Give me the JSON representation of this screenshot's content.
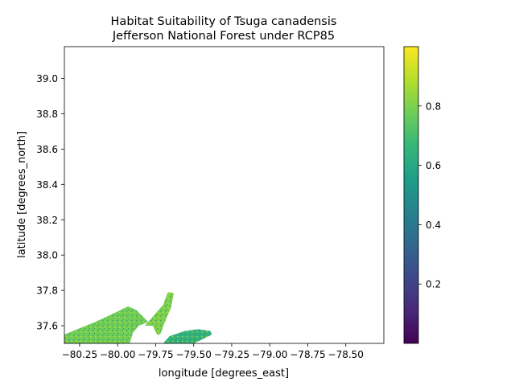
{
  "chart_data": {
    "type": "heatmap",
    "title_line1": "Habitat Suitability of Tsuga canadensis",
    "title_line2": "Jefferson National Forest under RCP85",
    "xlabel": "longitude [degrees_east]",
    "ylabel": "latitude [degrees_north]",
    "xlim": [
      -80.35,
      -78.25
    ],
    "ylim": [
      37.5,
      39.18
    ],
    "x_ticks": [
      -80.25,
      -80.0,
      -79.75,
      -79.5,
      -79.25,
      -79.0,
      -78.75,
      -78.5
    ],
    "x_tick_labels": [
      "−80.25",
      "−80.00",
      "−79.75",
      "−79.50",
      "−79.25",
      "−79.00",
      "−78.75",
      "−78.50"
    ],
    "y_ticks": [
      37.6,
      37.8,
      38.0,
      38.2,
      38.4,
      38.6,
      38.8,
      39.0
    ],
    "y_tick_labels": [
      "37.6",
      "37.8",
      "38.0",
      "38.2",
      "38.4",
      "38.6",
      "38.8",
      "39.0"
    ],
    "colorbar": {
      "colormap": "viridis",
      "range": [
        0.0,
        1.0
      ],
      "ticks": [
        0.2,
        0.4,
        0.6,
        0.8
      ],
      "tick_labels": [
        "0.2",
        "0.4",
        "0.6",
        "0.8"
      ],
      "colors": [
        "#440154",
        "#482878",
        "#3e4989",
        "#31688e",
        "#26828e",
        "#1f9e89",
        "#35b779",
        "#6ece58",
        "#b5de2b",
        "#fde725"
      ]
    },
    "regions": [
      {
        "polygon": [
          [
            -80.35,
            37.5
          ],
          [
            -80.35,
            37.55
          ],
          [
            -80.25,
            37.585
          ],
          [
            -80.15,
            37.62
          ],
          [
            -80.05,
            37.66
          ],
          [
            -79.93,
            37.71
          ],
          [
            -79.88,
            37.69
          ],
          [
            -79.82,
            37.64
          ],
          [
            -79.8,
            37.62
          ],
          [
            -79.86,
            37.6
          ],
          [
            -79.9,
            37.56
          ],
          [
            -79.92,
            37.5
          ]
        ],
        "dominant_value": 0.78
      },
      {
        "polygon": [
          [
            -79.82,
            37.6
          ],
          [
            -79.76,
            37.66
          ],
          [
            -79.7,
            37.72
          ],
          [
            -79.67,
            37.79
          ],
          [
            -79.63,
            37.785
          ],
          [
            -79.65,
            37.7
          ],
          [
            -79.69,
            37.62
          ],
          [
            -79.72,
            37.55
          ],
          [
            -79.74,
            37.55
          ],
          [
            -79.77,
            37.6
          ]
        ],
        "dominant_value": 0.8
      },
      {
        "polygon": [
          [
            -79.7,
            37.5
          ],
          [
            -79.66,
            37.54
          ],
          [
            -79.56,
            37.57
          ],
          [
            -79.47,
            37.58
          ],
          [
            -79.39,
            37.57
          ],
          [
            -79.38,
            37.55
          ],
          [
            -79.45,
            37.52
          ],
          [
            -79.5,
            37.5
          ]
        ],
        "dominant_value": 0.65
      }
    ]
  }
}
